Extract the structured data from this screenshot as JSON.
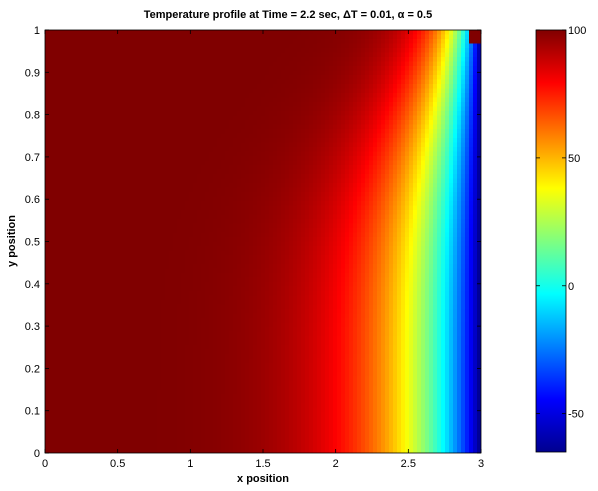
{
  "chart_data": {
    "type": "heatmap",
    "title": "Temperature profile at Time = 2.2 sec, ΔT = 0.01, α = 0.5",
    "xlabel": "x position",
    "ylabel": "y position",
    "xlim": [
      0,
      3
    ],
    "ylim": [
      0,
      1
    ],
    "x_ticks": [
      "0",
      "0.5",
      "1",
      "1.5",
      "2",
      "2.5",
      "3"
    ],
    "y_ticks": [
      "0",
      "0.1",
      "0.2",
      "0.3",
      "0.4",
      "0.5",
      "0.6",
      "0.7",
      "0.8",
      "0.9",
      "1"
    ],
    "colorbar": {
      "range": [
        -65,
        100
      ],
      "ticks": [
        "100",
        "50",
        "0",
        "-50"
      ],
      "colormap": "jet"
    },
    "field_description_values": {
      "temperature_at_left_edge": 100,
      "temperature_at_right_edge": -65,
      "hot_corner": "top-right point reaches 100"
    }
  }
}
